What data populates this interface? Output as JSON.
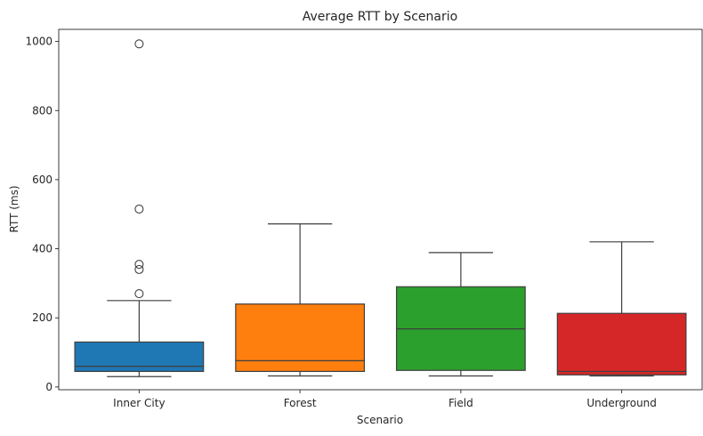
{
  "chart_data": {
    "type": "box",
    "title": "Average RTT by Scenario",
    "xlabel": "Scenario",
    "ylabel": "RTT (ms)",
    "ylim": [
      -8,
      1035
    ],
    "yticks": [
      0,
      200,
      400,
      600,
      800,
      1000
    ],
    "grid": false,
    "categories": [
      "Inner City",
      "Forest",
      "Field",
      "Underground"
    ],
    "boxes": [
      {
        "category": "Inner City",
        "color": "#1f77b4",
        "whisker_low": 30,
        "q1": 45,
        "median": 60,
        "q3": 130,
        "whisker_high": 250,
        "outliers": [
          270,
          340,
          355,
          515,
          993
        ]
      },
      {
        "category": "Forest",
        "color": "#ff7f0e",
        "whisker_low": 32,
        "q1": 45,
        "median": 76,
        "q3": 240,
        "whisker_high": 472,
        "outliers": []
      },
      {
        "category": "Field",
        "color": "#2ca02c",
        "whisker_low": 32,
        "q1": 48,
        "median": 168,
        "q3": 290,
        "whisker_high": 389,
        "outliers": []
      },
      {
        "category": "Underground",
        "color": "#d62728",
        "whisker_low": 32,
        "q1": 35,
        "median": 45,
        "q3": 213,
        "whisker_high": 420,
        "outliers": []
      }
    ]
  }
}
